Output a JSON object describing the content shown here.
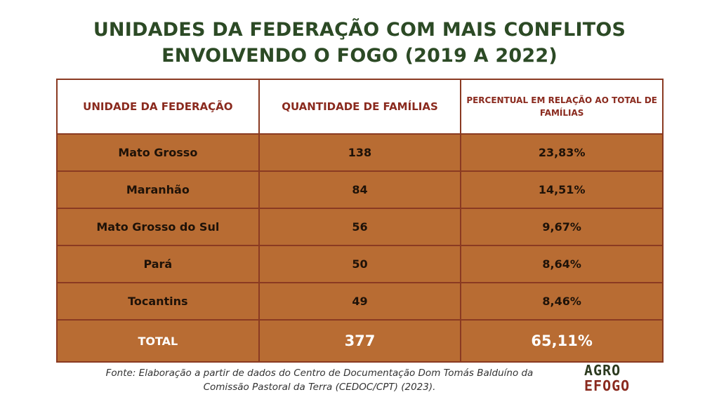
{
  "title": {
    "line1": "UNIDADES DA FEDERAÇÃO COM MAIS CONFLITOS",
    "line2": "ENVOLVENDO O FOGO (2019 A 2022)"
  },
  "table": {
    "headers": [
      "UNIDADE DA FEDERAÇÃO",
      "QUANTIDADE DE FAMÍLIAS",
      "PERCENTUAL EM RELAÇÃO AO TOTAL DE FAMÍLIAS"
    ],
    "rows": [
      [
        "Mato Grosso",
        "138",
        "23,83%"
      ],
      [
        "Maranhão",
        "84",
        "14,51%"
      ],
      [
        "Mato Grosso do Sul",
        "56",
        "9,67%"
      ],
      [
        "Pará",
        "50",
        "8,64%"
      ],
      [
        "Tocantins",
        "49",
        "8,46%"
      ]
    ],
    "total": [
      "TOTAL",
      "377",
      "65,11%"
    ]
  },
  "source": {
    "line1": "Fonte: Elaboração a partir de dados do Centro de Documentação Dom Tomás Balduíno da",
    "line2": "Comissão Pastoral da Terra (CEDOC/CPT) (2023)."
  },
  "logo": {
    "line1": "AGRO",
    "line2": "EFOGO"
  },
  "colors": {
    "title": "#2c4a25",
    "header_text": "#8a2a1e",
    "row_background": "#b86c33",
    "border": "#8a3a22"
  }
}
